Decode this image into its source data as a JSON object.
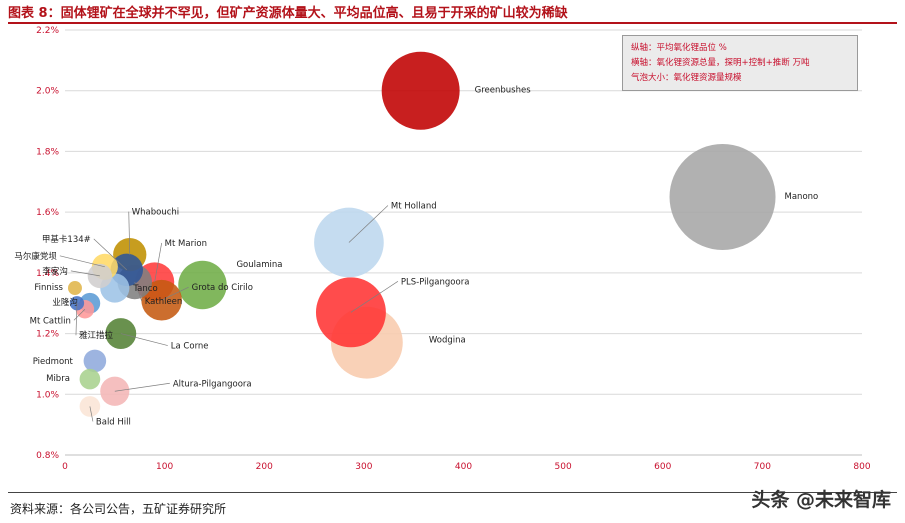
{
  "title": "图表 8：固体锂矿在全球并不罕见，但矿产资源体量大、平均品位高、且易于开采的矿山较为稀缺",
  "legend_box": {
    "line1": "纵轴：平均氧化锂品位 %",
    "line2": "横轴：氧化锂资源总量，探明+控制+推断 万吨",
    "line3": "气泡大小：氧化锂资源量规模"
  },
  "source": "资料来源：各公司公告，五矿证券研究所",
  "watermark": "头条 @未来智库",
  "colors": {
    "title": "#b3121a",
    "tick_y": "#c8102e",
    "tick_x": "#c8102e"
  },
  "chart_data": {
    "type": "bubble",
    "xlim": [
      0,
      800
    ],
    "ylim": [
      0.8,
      2.2
    ],
    "xticks": [
      0,
      100,
      200,
      300,
      400,
      500,
      600,
      700,
      800
    ],
    "yticks": [
      0.8,
      1.0,
      1.2,
      1.4,
      1.6,
      1.8,
      2.0,
      2.2
    ],
    "ytick_labels": [
      "0.8%",
      "1.0%",
      "1.2%",
      "1.4%",
      "1.6%",
      "1.8%",
      "2.0%",
      "2.2%"
    ],
    "grid": "horizontal",
    "points": [
      {
        "name": "Manono",
        "x": 660,
        "y": 1.65,
        "size": 660,
        "color": "#a6a6a6"
      },
      {
        "name": "Greenbushes",
        "x": 357,
        "y": 2.0,
        "size": 357,
        "color": "#c00000"
      },
      {
        "name": "Wodgina",
        "x": 303,
        "y": 1.17,
        "size": 303,
        "color": "#f8cbad"
      },
      {
        "name": "PLS-Pilgangoora",
        "x": 287,
        "y": 1.27,
        "size": 287,
        "color": "#ff3333"
      },
      {
        "name": "Mt Holland",
        "x": 285,
        "y": 1.5,
        "size": 285,
        "color": "#bdd7ee"
      },
      {
        "name": "Goulamina",
        "x": 138,
        "y": 1.36,
        "size": 138,
        "color": "#70ad47"
      },
      {
        "name": "Mt Marion",
        "x": 90,
        "y": 1.37,
        "size": 90,
        "color": "#ff3b3b"
      },
      {
        "name": "Grota do Cirilo",
        "x": 97,
        "y": 1.31,
        "size": 97,
        "color": "#c55a11"
      },
      {
        "name": "Kathleen",
        "x": 70,
        "y": 1.37,
        "size": 70,
        "color": "#7f7f7f"
      },
      {
        "name": "Whabouchi",
        "x": 65,
        "y": 1.46,
        "size": 65,
        "color": "#bf9000"
      },
      {
        "name": "甲基卡134#",
        "x": 62,
        "y": 1.41,
        "size": 62,
        "color": "#2f5597"
      },
      {
        "name": "La Corne",
        "x": 56,
        "y": 1.2,
        "size": 56,
        "color": "#548235"
      },
      {
        "name": "Tanco",
        "x": 50,
        "y": 1.35,
        "size": 50,
        "color": "#9dc3e6"
      },
      {
        "name": "Altura-Pilgangoora",
        "x": 50,
        "y": 1.01,
        "size": 50,
        "color": "#f4b6b6"
      },
      {
        "name": "马尔康党坝",
        "x": 40,
        "y": 1.42,
        "size": 40,
        "color": "#ffd966"
      },
      {
        "name": "李家沟",
        "x": 35,
        "y": 1.39,
        "size": 35,
        "color": "#d0cece"
      },
      {
        "name": "Piedmont",
        "x": 30,
        "y": 1.11,
        "size": 30,
        "color": "#8faadc"
      },
      {
        "name": "业隆沟",
        "x": 25,
        "y": 1.3,
        "size": 25,
        "color": "#5b9bd5"
      },
      {
        "name": "Mibra",
        "x": 25,
        "y": 1.05,
        "size": 25,
        "color": "#a9d18e"
      },
      {
        "name": "Mt Cattlin",
        "x": 20,
        "y": 1.28,
        "size": 20,
        "color": "#ff9999"
      },
      {
        "name": "Bald Hill",
        "x": 25,
        "y": 0.96,
        "size": 25,
        "color": "#fbe5d6"
      },
      {
        "name": "雅江措拉",
        "x": 12,
        "y": 1.3,
        "size": 12,
        "color": "#4472c4"
      },
      {
        "name": "Finniss",
        "x": 10,
        "y": 1.35,
        "size": 10,
        "color": "#e0b54a"
      }
    ]
  }
}
